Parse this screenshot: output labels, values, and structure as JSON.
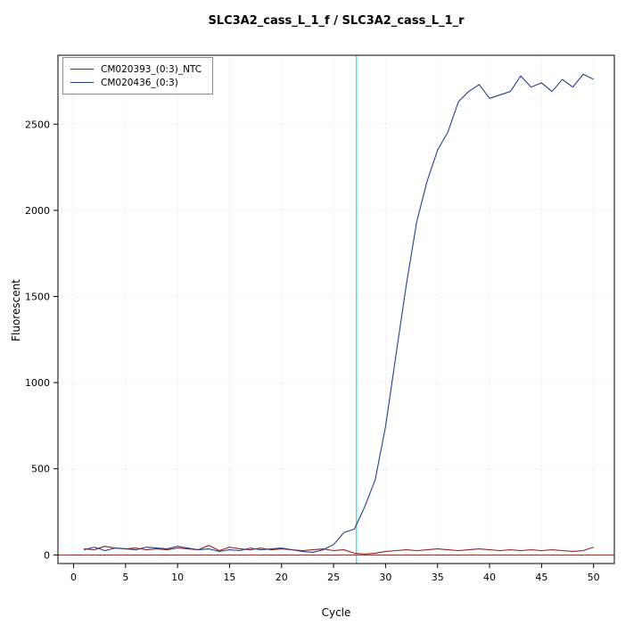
{
  "chart_data": {
    "type": "line",
    "title": "SLC3A2_cass_L_1_f / SLC3A2_cass_L_1_r",
    "xlabel": "Cycle",
    "ylabel": "Fluorescent",
    "xlim": [
      -1.5,
      52
    ],
    "ylim": [
      -50,
      2900
    ],
    "x_ticks": [
      0,
      5,
      10,
      15,
      20,
      25,
      30,
      35,
      40,
      45,
      50
    ],
    "y_ticks": [
      0,
      500,
      1000,
      1500,
      2000,
      2500
    ],
    "grid": true,
    "legend_position": "top-left",
    "threshold_value": 0,
    "ct_line_x": 27.2,
    "colors": {
      "grid": "#d4d4d4",
      "ct_line": "#00e5ee",
      "threshold_line": "#8b2323",
      "axis": "#000000"
    },
    "series": [
      {
        "name": "CM020393_(0:3)_NTC",
        "color": "#8b2323",
        "values": [
          35,
          30,
          50,
          40,
          35,
          40,
          30,
          35,
          30,
          40,
          35,
          30,
          55,
          25,
          45,
          35,
          30,
          40,
          30,
          35,
          30,
          25,
          30,
          35,
          25,
          30,
          10,
          5,
          10,
          20,
          25,
          30,
          25,
          30,
          35,
          30,
          25,
          30,
          35,
          30,
          25,
          30,
          25,
          30,
          25,
          30,
          25,
          20,
          25,
          45
        ]
      },
      {
        "name": "CM020436_(0:3)",
        "color": "#27408b",
        "values": [
          30,
          45,
          25,
          40,
          35,
          30,
          45,
          40,
          35,
          50,
          40,
          30,
          35,
          20,
          30,
          25,
          40,
          30,
          35,
          40,
          30,
          20,
          15,
          30,
          60,
          130,
          150,
          280,
          435,
          745,
          1160,
          1570,
          1935,
          2170,
          2350,
          2455,
          2630,
          2690,
          2730,
          2650,
          2670,
          2690,
          2780,
          2715,
          2740,
          2690,
          2760,
          2715,
          2790,
          2760
        ]
      }
    ]
  }
}
